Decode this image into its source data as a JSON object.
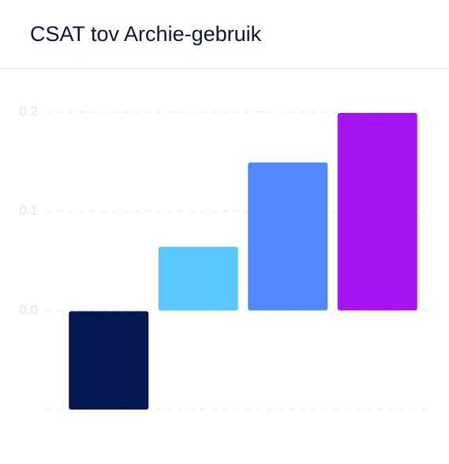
{
  "chart_data": {
    "type": "bar",
    "title": "CSAT tov Archie-gebruik",
    "values": [
      -0.1,
      0.065,
      0.15,
      0.2
    ],
    "colors": [
      "#05174f",
      "#5bc8fd",
      "#5288fc",
      "#a514f1"
    ],
    "ylim": [
      -0.1,
      0.2
    ],
    "yticks": [
      {
        "value": 0,
        "label": "0.0"
      },
      0.1,
      0.2
    ],
    "grid": true
  }
}
